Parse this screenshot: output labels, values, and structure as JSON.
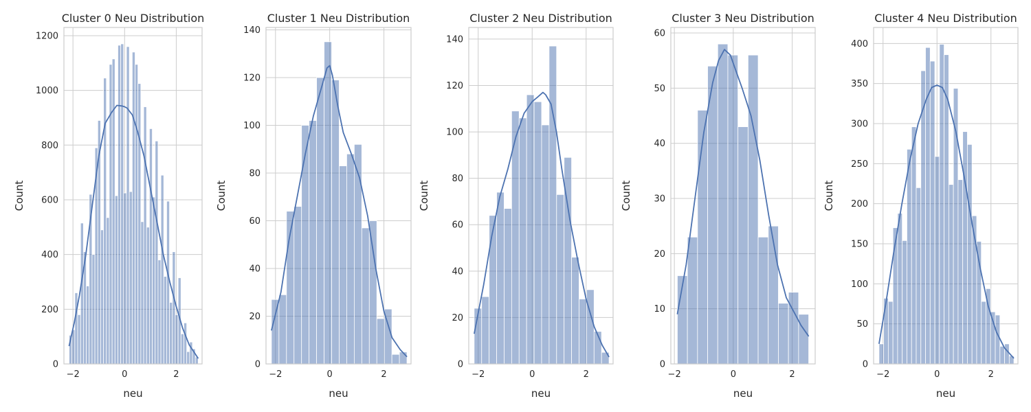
{
  "colors": {
    "bar_fill": "#4c72b0",
    "kde_line": "#4c72b0",
    "grid": "#cccccc",
    "spine": "#cccccc",
    "text": "#262626"
  },
  "chart_data": [
    {
      "type": "bar",
      "title": "Cluster 0 Neu Distribution",
      "xlabel": "neu",
      "ylabel": "Count",
      "xlim": [
        -2.35,
        3.0
      ],
      "ylim": [
        0,
        1230
      ],
      "xticks": [
        -2,
        0,
        2
      ],
      "xtick_labels": [
        "−2",
        "0",
        "2"
      ],
      "yticks": [
        0,
        200,
        400,
        600,
        800,
        1000,
        1200
      ],
      "grid": true,
      "bin_start": -2.15,
      "bin_end": 2.85,
      "counts": [
        105,
        125,
        260,
        180,
        515,
        410,
        285,
        620,
        400,
        790,
        890,
        490,
        1045,
        535,
        1095,
        1115,
        615,
        1165,
        1170,
        625,
        1160,
        630,
        1140,
        1095,
        1025,
        520,
        940,
        500,
        860,
        610,
        815,
        380,
        690,
        320,
        595,
        225,
        410,
        180,
        315,
        110,
        150,
        45,
        80,
        55,
        25
      ],
      "kde": {
        "x": [
          -2.15,
          -1.95,
          -1.75,
          -1.5,
          -1.25,
          -1.0,
          -0.75,
          -0.5,
          -0.3,
          -0.1,
          0.0,
          0.1,
          0.3,
          0.5,
          0.75,
          1.0,
          1.25,
          1.5,
          1.75,
          2.0,
          2.25,
          2.5,
          2.85
        ],
        "y": [
          65,
          150,
          250,
          400,
          580,
          760,
          880,
          920,
          945,
          943,
          940,
          935,
          910,
          850,
          760,
          640,
          520,
          400,
          300,
          210,
          130,
          70,
          20
        ]
      }
    },
    {
      "type": "bar",
      "title": "Cluster 1 Neu Distribution",
      "xlabel": "neu",
      "ylabel": "Count",
      "xlim": [
        -2.35,
        3.0
      ],
      "ylim": [
        0,
        141
      ],
      "xticks": [
        -2,
        0,
        2
      ],
      "xtick_labels": [
        "−2",
        "0",
        "2"
      ],
      "yticks": [
        0,
        20,
        40,
        60,
        80,
        100,
        120,
        140
      ],
      "grid": true,
      "bin_start": -2.15,
      "bin_end": 2.85,
      "counts": [
        27,
        29,
        64,
        66,
        100,
        102,
        120,
        135,
        119,
        83,
        88,
        92,
        57,
        60,
        19,
        23,
        4,
        5
      ],
      "kde": {
        "x": [
          -2.15,
          -1.8,
          -1.5,
          -1.2,
          -0.9,
          -0.6,
          -0.3,
          -0.1,
          0.0,
          0.1,
          0.3,
          0.5,
          0.8,
          1.1,
          1.4,
          1.7,
          2.0,
          2.3,
          2.6,
          2.85
        ],
        "y": [
          14,
          30,
          52,
          70,
          88,
          104,
          116,
          124,
          125,
          121,
          108,
          97,
          88,
          78,
          62,
          40,
          22,
          11,
          6,
          3
        ]
      }
    },
    {
      "type": "bar",
      "title": "Cluster 2 Neu Distribution",
      "xlabel": "neu",
      "ylabel": "Count",
      "xlim": [
        -2.35,
        3.0
      ],
      "ylim": [
        0,
        145
      ],
      "xticks": [
        -2,
        0,
        2
      ],
      "xtick_labels": [
        "−2",
        "0",
        "2"
      ],
      "yticks": [
        0,
        20,
        40,
        60,
        80,
        100,
        120,
        140
      ],
      "grid": true,
      "bin_start": -2.15,
      "bin_end": 2.85,
      "counts": [
        24,
        29,
        64,
        74,
        67,
        109,
        106,
        116,
        113,
        103,
        137,
        73,
        89,
        46,
        28,
        32,
        14,
        5
      ],
      "kde": {
        "x": [
          -2.15,
          -1.8,
          -1.5,
          -1.2,
          -0.9,
          -0.6,
          -0.3,
          0.0,
          0.2,
          0.4,
          0.5,
          0.7,
          0.9,
          1.1,
          1.4,
          1.7,
          2.0,
          2.3,
          2.6,
          2.85
        ],
        "y": [
          13,
          34,
          55,
          72,
          84,
          98,
          108,
          113,
          115,
          117,
          116,
          112,
          100,
          84,
          62,
          44,
          28,
          16,
          8,
          3
        ]
      }
    },
    {
      "type": "bar",
      "title": "Cluster 3 Neu Distribution",
      "xlabel": "neu",
      "ylabel": "Count",
      "xlim": [
        -2.12,
        2.78
      ],
      "ylim": [
        0,
        61
      ],
      "xticks": [
        -2,
        0,
        2
      ],
      "xtick_labels": [
        "−2",
        "0",
        "2"
      ],
      "yticks": [
        0,
        10,
        20,
        30,
        40,
        50,
        60
      ],
      "grid": true,
      "bin_start": -1.9,
      "bin_end": 2.56,
      "counts": [
        16,
        23,
        46,
        54,
        58,
        56,
        43,
        56,
        23,
        25,
        11,
        13,
        9
      ],
      "kde": {
        "x": [
          -1.9,
          -1.6,
          -1.3,
          -1.0,
          -0.7,
          -0.5,
          -0.3,
          -0.1,
          0.1,
          0.3,
          0.6,
          0.9,
          1.2,
          1.5,
          1.8,
          2.1,
          2.3,
          2.56
        ],
        "y": [
          9,
          18,
          30,
          42,
          51,
          55,
          57,
          56,
          53,
          50,
          45,
          37,
          27,
          18,
          12,
          9,
          7,
          5
        ]
      }
    },
    {
      "type": "bar",
      "title": "Cluster 4 Neu Distribution",
      "xlabel": "neu",
      "ylabel": "Count",
      "xlim": [
        -2.35,
        3.0
      ],
      "ylim": [
        0,
        420
      ],
      "xticks": [
        -2,
        0,
        2
      ],
      "xtick_labels": [
        "−2",
        "0",
        "2"
      ],
      "yticks": [
        0,
        50,
        100,
        150,
        200,
        250,
        300,
        350,
        400
      ],
      "grid": true,
      "bin_start": -2.15,
      "bin_end": 2.85,
      "counts": [
        25,
        82,
        78,
        170,
        188,
        154,
        268,
        296,
        220,
        366,
        395,
        378,
        259,
        399,
        386,
        224,
        344,
        230,
        290,
        274,
        185,
        153,
        78,
        94,
        65,
        61,
        22,
        25,
        10
      ],
      "kde": {
        "x": [
          -2.15,
          -1.9,
          -1.6,
          -1.3,
          -1.0,
          -0.7,
          -0.4,
          -0.2,
          0.0,
          0.2,
          0.4,
          0.7,
          1.0,
          1.3,
          1.6,
          1.9,
          2.2,
          2.5,
          2.85
        ],
        "y": [
          25,
          75,
          140,
          200,
          255,
          300,
          330,
          345,
          348,
          345,
          330,
          290,
          235,
          175,
          120,
          72,
          40,
          20,
          7
        ]
      }
    }
  ]
}
